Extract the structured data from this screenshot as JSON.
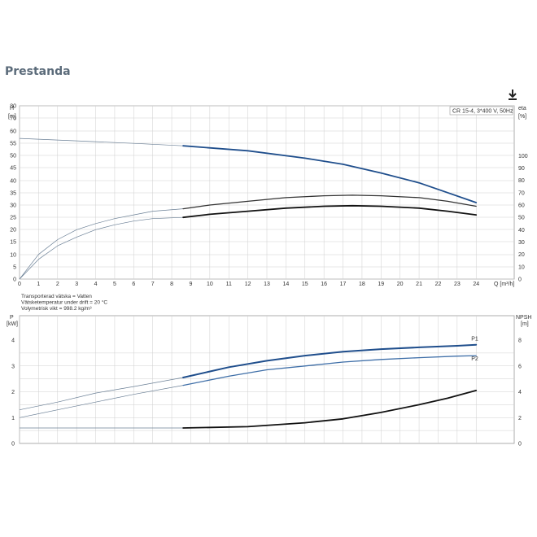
{
  "page": {
    "title": "Prestanda"
  },
  "icons": {
    "download": "download-icon"
  },
  "colors": {
    "blue": "#1f4e8c",
    "blue_light": "#3f6fa8",
    "black": "#111111",
    "thin": "#6a7f95",
    "grid": "#cfcfcf"
  },
  "chart_data": [
    {
      "type": "line",
      "id": "top",
      "legend_box": "CR 15-4, 3*400 V, 50Hz",
      "left_axis": {
        "label_line1": "H",
        "label_line2": "[m]",
        "ylim": [
          0,
          90
        ],
        "ticks": [
          0,
          5,
          10,
          15,
          20,
          25,
          30,
          35,
          40,
          45,
          50,
          55,
          60,
          70,
          80
        ]
      },
      "right_axis": {
        "label_line1": "eta",
        "label_line2": "[%]",
        "ylim": [
          0,
          180
        ],
        "ticks": [
          0,
          10,
          20,
          30,
          40,
          50,
          60,
          70,
          80,
          90,
          100
        ]
      },
      "x_axis": {
        "label": "Q [m³/h]",
        "xlim": [
          0,
          26
        ],
        "ticks": [
          0,
          1,
          2,
          3,
          4,
          5,
          6,
          7,
          8,
          9,
          10,
          11,
          12,
          13,
          14,
          15,
          16,
          17,
          18,
          19,
          20,
          21,
          22,
          23,
          24
        ]
      },
      "series": [
        {
          "axis": "left",
          "points_thin": [
            [
              0,
              57
            ],
            [
              3,
              56
            ],
            [
              6,
              55
            ],
            [
              8.6,
              54
            ]
          ],
          "points_thick": [
            [
              8.6,
              54
            ],
            [
              12,
              52
            ],
            [
              15,
              49
            ],
            [
              17,
              46.5
            ],
            [
              19,
              43
            ],
            [
              21,
              39
            ],
            [
              22.5,
              35
            ],
            [
              24,
              31
            ]
          ]
        },
        {
          "axis": "right",
          "points_thin": [
            [
              0,
              0
            ],
            [
              1,
              20
            ],
            [
              2,
              32
            ],
            [
              3,
              40
            ],
            [
              4,
              45
            ],
            [
              5,
              49
            ],
            [
              6,
              52
            ],
            [
              7,
              55
            ],
            [
              8.6,
              57
            ]
          ],
          "points_thick": [
            [
              8.6,
              57
            ],
            [
              10,
              60
            ],
            [
              12,
              63
            ],
            [
              14,
              66
            ],
            [
              16,
              67.5
            ],
            [
              17.5,
              68
            ],
            [
              19,
              67.5
            ],
            [
              21,
              66
            ],
            [
              22.5,
              63
            ],
            [
              24,
              59
            ]
          ]
        },
        {
          "axis": "right",
          "points_thin": [
            [
              0,
              0
            ],
            [
              1,
              16
            ],
            [
              2,
              27
            ],
            [
              3,
              34
            ],
            [
              4,
              40
            ],
            [
              5,
              44
            ],
            [
              6,
              47
            ],
            [
              7,
              49
            ],
            [
              8.6,
              50
            ]
          ],
          "points_thick": [
            [
              8.6,
              50
            ],
            [
              10,
              52.5
            ],
            [
              12,
              55
            ],
            [
              14,
              57.5
            ],
            [
              16,
              59
            ],
            [
              17.5,
              59.5
            ],
            [
              19,
              59
            ],
            [
              21,
              57.5
            ],
            [
              22.5,
              55
            ],
            [
              24,
              52
            ]
          ]
        }
      ],
      "notes": [
        "Transporterad vätska = Vatten",
        "Vätsketemperatur under drift = 20 °C",
        "Volymetrisk vikt = 998.2 kg/m³"
      ]
    },
    {
      "type": "line",
      "id": "bottom",
      "left_axis": {
        "label_line1": "P",
        "label_line2": "[kW]",
        "ylim": [
          0,
          5
        ],
        "ticks": [
          0,
          1,
          2,
          3,
          4
        ]
      },
      "right_axis": {
        "label_line1": "NPSH",
        "label_line2": "[m]",
        "ylim": [
          0,
          10
        ],
        "ticks": [
          0,
          2,
          4,
          6,
          8
        ]
      },
      "x_axis": {
        "xlim": [
          0,
          26
        ]
      },
      "series": [
        {
          "name": "P1",
          "axis": "left",
          "points_thin": [
            [
              0,
              1.3
            ],
            [
              2,
              1.6
            ],
            [
              4,
              1.95
            ],
            [
              6,
              2.2
            ],
            [
              8.6,
              2.55
            ]
          ],
          "points_thick": [
            [
              8.6,
              2.55
            ],
            [
              11,
              2.95
            ],
            [
              13,
              3.2
            ],
            [
              15,
              3.4
            ],
            [
              17,
              3.55
            ],
            [
              19,
              3.65
            ],
            [
              21,
              3.72
            ],
            [
              23,
              3.78
            ],
            [
              24,
              3.82
            ]
          ]
        },
        {
          "name": "P2",
          "axis": "left",
          "points_thin": [
            [
              0,
              1.0
            ],
            [
              2,
              1.3
            ],
            [
              4,
              1.6
            ],
            [
              6,
              1.9
            ],
            [
              8.6,
              2.25
            ]
          ],
          "points_thick": [
            [
              8.6,
              2.25
            ],
            [
              11,
              2.6
            ],
            [
              13,
              2.85
            ],
            [
              15,
              3.0
            ],
            [
              17,
              3.15
            ],
            [
              19,
              3.25
            ],
            [
              21,
              3.32
            ],
            [
              23,
              3.38
            ],
            [
              24,
              3.4
            ]
          ]
        },
        {
          "axis": "right",
          "points_thin": [
            [
              0,
              1.2
            ],
            [
              4,
              1.2
            ],
            [
              8.6,
              1.2
            ]
          ],
          "points_thick": [
            [
              8.6,
              1.2
            ],
            [
              12,
              1.3
            ],
            [
              15,
              1.6
            ],
            [
              17,
              1.9
            ],
            [
              19,
              2.4
            ],
            [
              21,
              3.0
            ],
            [
              22.5,
              3.5
            ],
            [
              24,
              4.1
            ]
          ]
        }
      ]
    }
  ]
}
